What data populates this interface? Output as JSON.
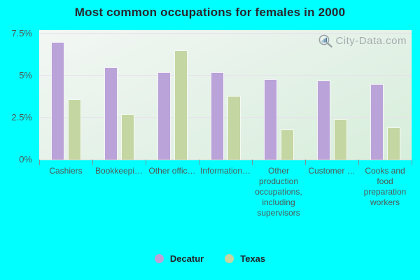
{
  "title": "Most common occupations for females in 2000",
  "watermark": {
    "text": "City-Data.com",
    "icon": "magnifier-with-bars-icon"
  },
  "colors": {
    "page_background": "#00ffff",
    "decatur_bar": "#b9a3d8",
    "texas_bar": "#c4d6a2",
    "gridline": "#e7e0ec",
    "axis_text": "#4f5a58",
    "title_text": "#29262e",
    "watermark_text": "#a6abb0"
  },
  "chart_data": {
    "type": "bar",
    "title": "Most common occupations for females in 2000",
    "categories": [
      "Cashiers",
      "Bookkeepi…",
      "Other offic…",
      "Information…",
      "Other production occupations, including supervisors",
      "Customer …",
      "Cooks and food preparation workers"
    ],
    "category_display": [
      "Cashiers",
      "Bookkeepi…",
      "Other offic…",
      "Information…",
      "Other\nproduction\noccupations,\nincluding\nsupervisors",
      "Customer …",
      "Cooks and\nfood\npreparation\nworkers"
    ],
    "series": [
      {
        "name": "Decatur",
        "color": "#b9a3d8",
        "values": [
          7.0,
          5.5,
          5.2,
          5.2,
          4.8,
          4.7,
          4.5
        ]
      },
      {
        "name": "Texas",
        "color": "#c4d6a2",
        "values": [
          3.6,
          2.7,
          6.5,
          3.8,
          1.8,
          2.4,
          1.9
        ]
      }
    ],
    "xlabel": "",
    "ylabel": "",
    "ylim": [
      0,
      7.7
    ],
    "yticks": [
      {
        "label": "0%",
        "value": 0
      },
      {
        "label": "2.5%",
        "value": 2.5
      },
      {
        "label": "5%",
        "value": 5
      },
      {
        "label": "7.5%",
        "value": 7.5
      }
    ],
    "grid": true,
    "legend_position": "bottom"
  },
  "legend": {
    "items": [
      {
        "label": "Decatur",
        "color": "#b9a3d8"
      },
      {
        "label": "Texas",
        "color": "#c4d6a2"
      }
    ]
  }
}
